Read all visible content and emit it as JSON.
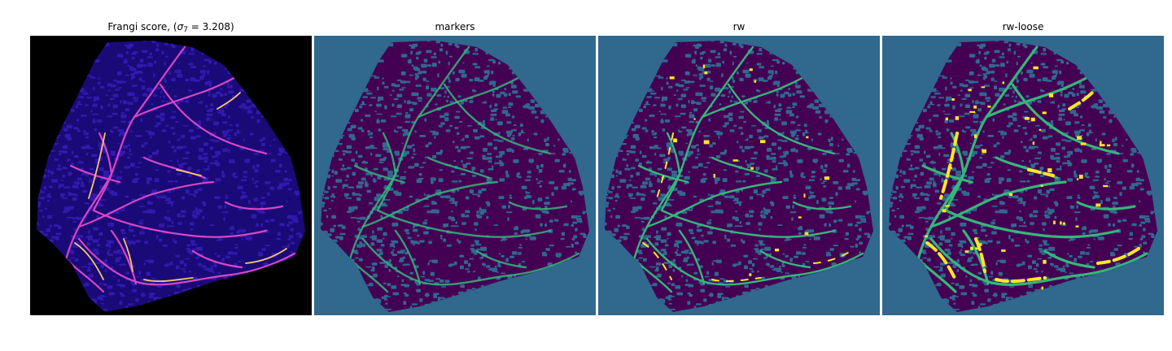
{
  "panels": [
    {
      "title_prefix": "Frangi score, (",
      "title_sigma": "σ",
      "title_sub": "7",
      "title_suffix": " = 3.208)",
      "background": "#000000",
      "tissue_color": "#1a0a78",
      "texture_color": "#3a1fc2",
      "vessel_color": "#d946c4",
      "highlight_color": "#f6c86a"
    },
    {
      "title": "markers",
      "background": "#30688e",
      "tissue_color": "#440154",
      "texture_color": "#30688e",
      "vessel_color": "#35b779"
    },
    {
      "title": "rw",
      "background": "#30688e",
      "tissue_color": "#440154",
      "texture_color": "#30688e",
      "vessel_color": "#35b779",
      "highlight_color": "#fde725"
    },
    {
      "title": "rw-loose",
      "background": "#30688e",
      "tissue_color": "#440154",
      "texture_color": "#30688e",
      "vessel_color": "#35b779",
      "highlight_color": "#fde725"
    }
  ]
}
